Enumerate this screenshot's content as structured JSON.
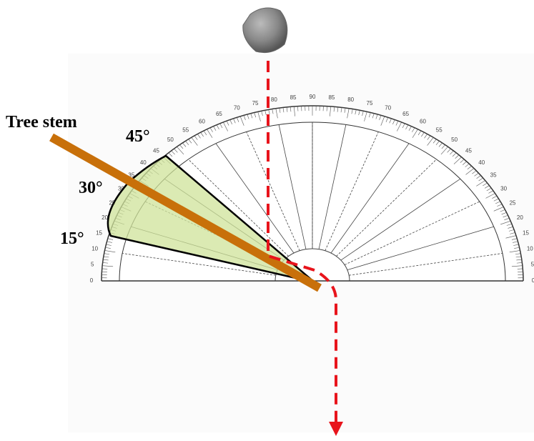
{
  "labels": {
    "stem": "Tree stem",
    "angle_45": "45°",
    "angle_30": "30°",
    "angle_15": "15°"
  },
  "protractor": {
    "labels": [
      "0",
      "5",
      "10",
      "15",
      "20",
      "25",
      "30",
      "35",
      "40",
      "45",
      "50",
      "55",
      "60",
      "65",
      "70",
      "75",
      "80",
      "85",
      "90",
      "85",
      "80",
      "75",
      "70",
      "65",
      "60",
      "55",
      "50",
      "45",
      "40",
      "35",
      "30",
      "25",
      "20",
      "15",
      "10",
      "5",
      "0"
    ]
  }
}
